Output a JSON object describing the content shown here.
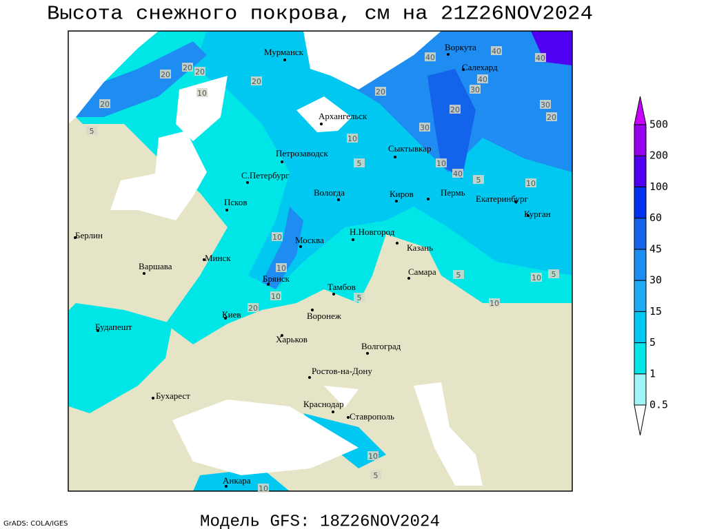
{
  "title": "Высота снежного покрова, см на 21Z26NOV2024",
  "footer": "Модель GFS: 18Z26NOV2024",
  "credit": "GrADS: COLA/IGES",
  "cities": [
    "Мурманск",
    "Воркута",
    "Салехард",
    "Архангельск",
    "Сыктывкар",
    "Петрозаводск",
    "С.Петербург",
    "Вологда",
    "Киров",
    "Пермь",
    "Екатеринбург",
    "Курган",
    "Псков",
    "Берлин",
    "Н.Новгород",
    "Казань",
    "Москва",
    "Минск",
    "Варшава",
    "Самара",
    "Брянск",
    "Тамбов",
    "Киев",
    "Воронеж",
    "Будапешт",
    "Харьков",
    "Волгоград",
    "Ростов-на-Дону",
    "Бухарест",
    "Краснодар",
    "Ставрополь",
    "Анкара"
  ],
  "contour_labels": [
    "40",
    "40",
    "40",
    "20",
    "20",
    "20",
    "10",
    "20",
    "5",
    "20",
    "20",
    "30",
    "30",
    "20",
    "40",
    "30",
    "20",
    "10",
    "40",
    "5",
    "10",
    "5",
    "10",
    "10",
    "10",
    "20",
    "10",
    "5",
    "10",
    "5",
    "10",
    "5",
    "10",
    "5",
    "10"
  ],
  "legend": {
    "levels": [
      0.5,
      1,
      5,
      15,
      30,
      45,
      60,
      100,
      200,
      500
    ],
    "colors": [
      "#ffffff",
      "#a0f5f5",
      "#00e6e6",
      "#00c8f0",
      "#1eaaf5",
      "#1e8cf0",
      "#1464eb",
      "#0032f0",
      "#5000f0",
      "#9600f0",
      "#c800ff"
    ]
  }
}
